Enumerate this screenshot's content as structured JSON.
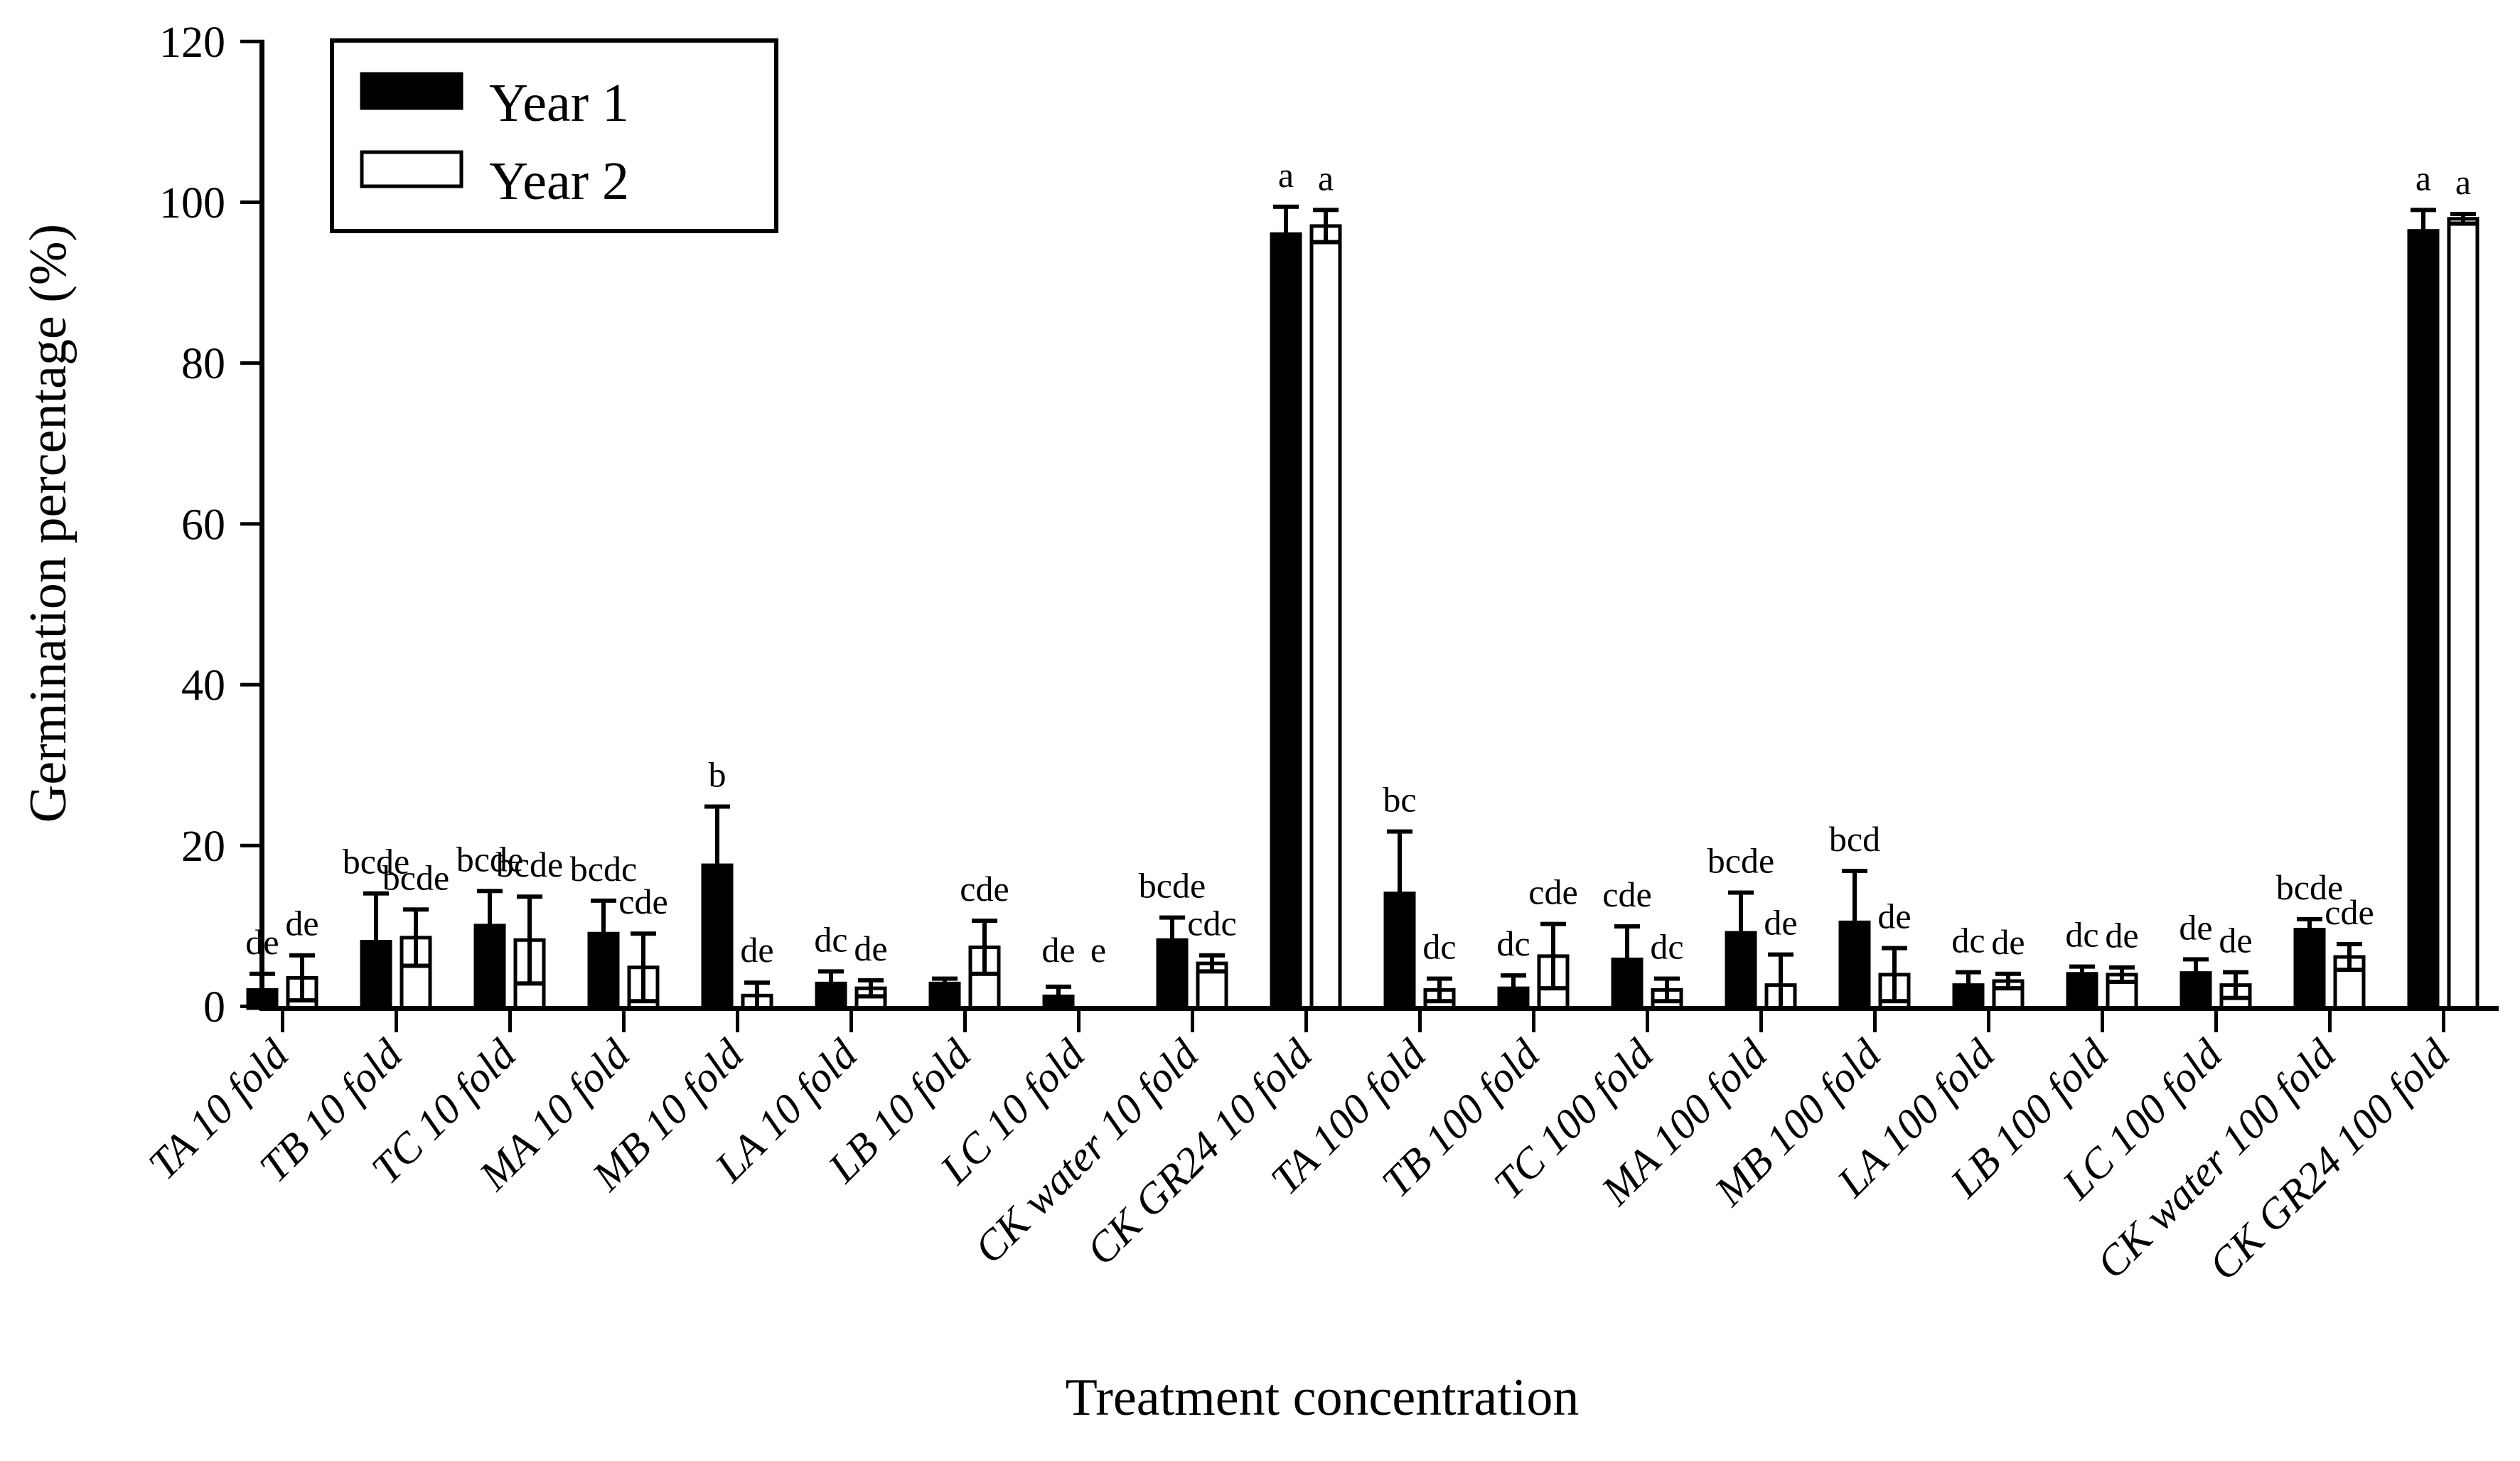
{
  "figure": {
    "background": "#ffffff",
    "axis_color": "#000000",
    "bar_fill_year1": "#000000",
    "bar_fill_year2": "#ffffff"
  },
  "legend": {
    "position": "upper-left",
    "items": [
      {
        "label": "Year 1",
        "swatch": "black-filled-rect"
      },
      {
        "label": "Year 2",
        "swatch": "white-outlined-rect"
      }
    ]
  },
  "chart_data": {
    "type": "bar",
    "title": "",
    "xlabel": "Treatment concentration",
    "ylabel": "Germination percentage (%)",
    "ylim": [
      0,
      120
    ],
    "yticks": [
      0,
      20,
      40,
      60,
      80,
      100,
      120
    ],
    "grid": false,
    "error_bars": "upper-caps-with-inner-lower-cap",
    "legend_position": "upper-left",
    "categories": [
      "TA 10 fold",
      "TB 10 fold",
      "TC 10 fold",
      "MA 10 fold",
      "MB 10 fold",
      "LA 10 fold",
      "LB 10 fold",
      "LC 10 fold",
      "CK water 10 fold",
      "CK GR24 10 fold",
      "TA 100 fold",
      "TB 100 fold",
      "TC 100 fold",
      "MA 100 fold",
      "MB 100 fold",
      "LA 100 fold",
      "LB 100 fold",
      "LC 100 fold",
      "CK water 100 fold",
      "CK GR24 100 fold"
    ],
    "series": [
      {
        "name": "Year 1",
        "fill": "#000000",
        "values": [
          2.0,
          8.0,
          10.0,
          9.0,
          17.5,
          2.8,
          2.8,
          1.2,
          8.2,
          96.0,
          14.0,
          2.2,
          5.8,
          9.1,
          10.4,
          2.6,
          4.0,
          4.1,
          9.5,
          96.4
        ],
        "errors": [
          2.0,
          6.0,
          4.3,
          4.1,
          7.3,
          1.5,
          0.6,
          1.2,
          2.8,
          3.4,
          7.7,
          1.6,
          4.1,
          5.0,
          6.4,
          1.6,
          0.9,
          1.7,
          1.3,
          2.6
        ],
        "letters": [
          "de",
          "bcde",
          "bcde",
          "bcdc",
          "b",
          "dc",
          "",
          "de",
          "bcde",
          "a",
          "bc",
          "dc",
          "cde",
          "bcde",
          "bcd",
          "dc",
          "dc",
          "de",
          "bcde",
          "a"
        ]
      },
      {
        "name": "Year 2",
        "fill": "#ffffff",
        "values": [
          3.5,
          8.5,
          8.2,
          4.8,
          1.3,
          2.2,
          7.3,
          0,
          5.3,
          97.0,
          2.0,
          6.2,
          2.0,
          2.6,
          3.9,
          3.1,
          3.9,
          2.6,
          6.1,
          97.9
        ],
        "errors": [
          2.8,
          3.5,
          5.4,
          4.2,
          1.6,
          1.0,
          3.3,
          0,
          1.0,
          2.0,
          1.4,
          4.0,
          1.4,
          3.8,
          3.3,
          0.9,
          0.9,
          1.6,
          1.6,
          0.6
        ],
        "letters": [
          "de",
          "bcde",
          "bcde",
          "cde",
          "de",
          "de",
          "cde",
          "e",
          "cdc",
          "a",
          "dc",
          "cde",
          "dc",
          "de",
          "de",
          "de",
          "de",
          "de",
          "cde",
          "a"
        ]
      }
    ]
  }
}
